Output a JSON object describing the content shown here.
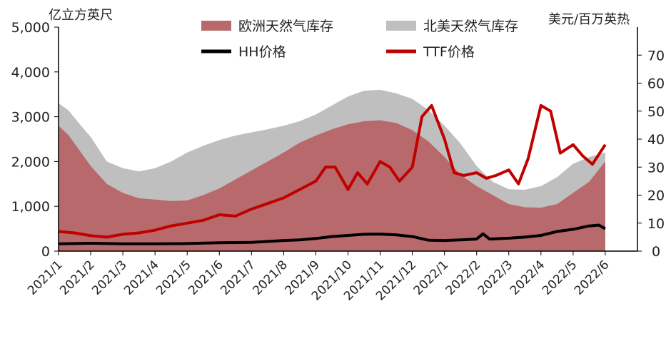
{
  "chart_data": {
    "type": "area",
    "title": "",
    "categories": [
      "2021/1",
      "2021/2",
      "2021/3",
      "2021/4",
      "2021/5",
      "2021/6",
      "2021/7",
      "2021/8",
      "2021/9",
      "2021/10",
      "2021/11",
      "2021/12",
      "2022/1",
      "2022/2",
      "2022/3",
      "2022/4",
      "2022/5",
      "2022/6"
    ],
    "y_left": {
      "label": "亿立方英尺",
      "lim": [
        0,
        5000
      ],
      "ticks": [
        "0",
        "1,000",
        "2,000",
        "3,000",
        "4,000",
        "5,000"
      ]
    },
    "y_right": {
      "label": "美元/百万英热",
      "lim": [
        0,
        80
      ],
      "ticks": [
        "0",
        "10",
        "20",
        "30",
        "40",
        "50",
        "60",
        "70"
      ]
    },
    "legend": {
      "placement": "top"
    },
    "series": [
      {
        "name": "欧洲天然气库存",
        "kind": "area",
        "axis": "left",
        "color": "#b8696b",
        "x": [
          0,
          0.3,
          0.7,
          1,
          1.5,
          2,
          2.5,
          3,
          3.5,
          4,
          4.5,
          5,
          5.5,
          6,
          6.5,
          7,
          7.5,
          8,
          8.5,
          9,
          9.5,
          10,
          10.5,
          11,
          11.5,
          12,
          12.5,
          13,
          13.5,
          14,
          14.5,
          15,
          15.5,
          16,
          16.5,
          17
        ],
        "values": [
          2800,
          2600,
          2200,
          1900,
          1500,
          1300,
          1180,
          1150,
          1120,
          1130,
          1250,
          1400,
          1600,
          1800,
          2000,
          2200,
          2420,
          2580,
          2720,
          2830,
          2900,
          2920,
          2860,
          2700,
          2450,
          2100,
          1700,
          1450,
          1250,
          1050,
          980,
          970,
          1050,
          1300,
          1550,
          2000
        ]
      },
      {
        "name": "北美天然气库存",
        "kind": "area",
        "axis": "left",
        "color": "#bfbfbf",
        "x": [
          0,
          0.3,
          0.7,
          1,
          1.5,
          2,
          2.5,
          3,
          3.5,
          4,
          4.5,
          5,
          5.5,
          6,
          6.5,
          7,
          7.5,
          8,
          8.5,
          9,
          9.5,
          10,
          10.5,
          11,
          11.5,
          12,
          12.5,
          13,
          13.5,
          14,
          14.5,
          15,
          15.5,
          16,
          16.5,
          17
        ],
        "values": [
          3300,
          3150,
          2800,
          2550,
          2000,
          1850,
          1780,
          1850,
          2000,
          2200,
          2350,
          2480,
          2580,
          2650,
          2720,
          2800,
          2900,
          3050,
          3250,
          3450,
          3580,
          3600,
          3520,
          3400,
          3150,
          2800,
          2400,
          1900,
          1550,
          1380,
          1370,
          1450,
          1650,
          1950,
          2100,
          2200
        ]
      },
      {
        "name": "HH价格",
        "kind": "line",
        "axis": "right",
        "color": "#000000",
        "x": [
          0,
          1,
          2,
          3,
          4,
          5,
          6,
          7,
          7.5,
          8,
          8.5,
          9,
          9.5,
          10,
          10.5,
          11,
          11.5,
          12,
          12.5,
          13,
          13.2,
          13.4,
          14,
          14.5,
          15,
          15.5,
          16,
          16.5,
          16.8,
          17
        ],
        "values": [
          2.6,
          2.8,
          2.6,
          2.6,
          2.7,
          3.0,
          3.1,
          3.8,
          4.0,
          4.5,
          5.2,
          5.6,
          6.0,
          6.1,
          5.8,
          5.2,
          3.9,
          3.8,
          4.0,
          4.3,
          6.2,
          4.3,
          4.6,
          5.0,
          5.6,
          7.0,
          7.8,
          9.0,
          9.3,
          8.0
        ]
      },
      {
        "name": "TTF价格",
        "kind": "line",
        "axis": "right",
        "color": "#c00000",
        "x": [
          0,
          0.5,
          1,
          1.5,
          2,
          2.5,
          3,
          3.5,
          4,
          4.5,
          5,
          5.5,
          6,
          6.5,
          7,
          7.5,
          8,
          8.3,
          8.6,
          9,
          9.3,
          9.6,
          10,
          10.3,
          10.6,
          11,
          11.3,
          11.6,
          12,
          12.3,
          12.6,
          13,
          13.3,
          13.6,
          14,
          14.3,
          14.6,
          15,
          15.3,
          15.6,
          16,
          16.3,
          16.6,
          17
        ],
        "values": [
          7,
          6.5,
          5.5,
          5,
          6,
          6.5,
          7.5,
          9,
          10,
          11,
          13,
          12.5,
          15,
          17,
          19,
          22,
          25,
          30,
          30,
          22,
          28,
          24,
          32,
          30,
          25,
          30,
          48,
          52,
          40,
          28,
          27,
          28,
          26,
          27,
          29,
          24,
          33,
          52,
          50,
          35,
          38,
          34,
          31,
          38
        ]
      }
    ]
  }
}
